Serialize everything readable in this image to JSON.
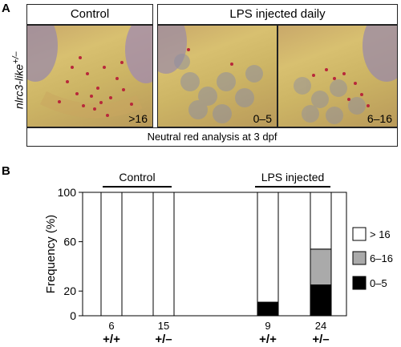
{
  "panel_a": {
    "letter": "A",
    "header_control": "Control",
    "header_lps": "LPS injected daily",
    "genotype_label": "nlrc3-like",
    "genotype_superscript": "+/–",
    "photos": [
      {
        "score": ">16"
      },
      {
        "score": "0–5"
      },
      {
        "score": "6–16"
      }
    ],
    "footer": "Neutral red analysis at 3 dpf"
  },
  "panel_b": {
    "letter": "B",
    "group_control": "Control",
    "group_lps": "LPS injected"
  },
  "chart_data": {
    "type": "bar",
    "stacked": true,
    "ylabel": "Frequency (%)",
    "ylim": [
      0,
      100
    ],
    "yticks": [
      0,
      20,
      60,
      100
    ],
    "categories": [
      "+/+",
      "+/–",
      "+/+",
      "+/–"
    ],
    "counts": [
      "6",
      "15",
      "9",
      "24"
    ],
    "groups": [
      {
        "name": "Control",
        "categories": [
          0,
          1
        ]
      },
      {
        "name": "LPS injected",
        "categories": [
          2,
          3
        ]
      }
    ],
    "series": [
      {
        "name": "0–5",
        "color": "#000000",
        "values": [
          0,
          0,
          11,
          25
        ]
      },
      {
        "name": "6–16",
        "color": "#aaaaaa",
        "values": [
          0,
          0,
          0,
          29
        ]
      },
      {
        "name": ">16",
        "color": "#ffffff",
        "values": [
          100,
          100,
          89,
          46
        ]
      }
    ],
    "legend": [
      "> 16",
      "6–16",
      "0–5"
    ],
    "legend_position": "right"
  }
}
